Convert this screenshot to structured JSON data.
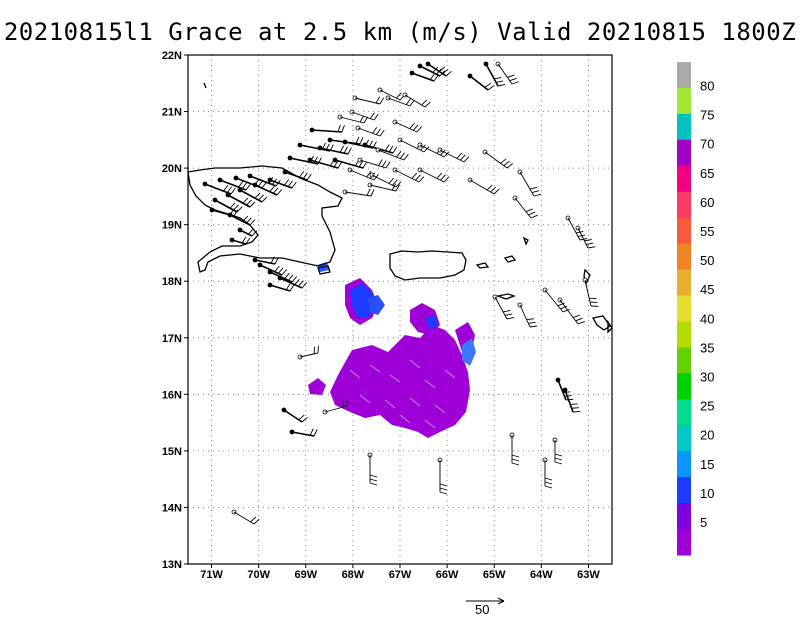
{
  "title": "20210815l1 Grace at 2.5 km (m/s) Valid 20210815 1800Z",
  "map": {
    "lon_range": [
      -71.5,
      -62.5
    ],
    "lat_range": [
      13,
      22
    ],
    "lat_labels": [
      "13N",
      "14N",
      "15N",
      "16N",
      "17N",
      "18N",
      "19N",
      "20N",
      "21N",
      "22N"
    ],
    "lon_labels": [
      "71W",
      "70W",
      "69W",
      "68W",
      "67W",
      "66W",
      "65W",
      "64W",
      "63W"
    ],
    "grid": "dotted"
  },
  "colorbar": {
    "labels": [
      "5",
      "10",
      "15",
      "20",
      "25",
      "30",
      "35",
      "40",
      "45",
      "50",
      "55",
      "60",
      "65",
      "70",
      "75",
      "80"
    ],
    "colors": [
      "#a000d8",
      "#8000e0",
      "#1e3cff",
      "#0a96ff",
      "#00c8c8",
      "#00dc8c",
      "#00d200",
      "#64d200",
      "#b4dc00",
      "#e6dc32",
      "#e6af2d",
      "#f08228",
      "#fa5a3c",
      "#fa3c64",
      "#f00082",
      "#a000c8",
      "#00c0c0",
      "#a0e632",
      "#aaaaaa"
    ]
  },
  "reference_vector": {
    "label": "50"
  }
}
